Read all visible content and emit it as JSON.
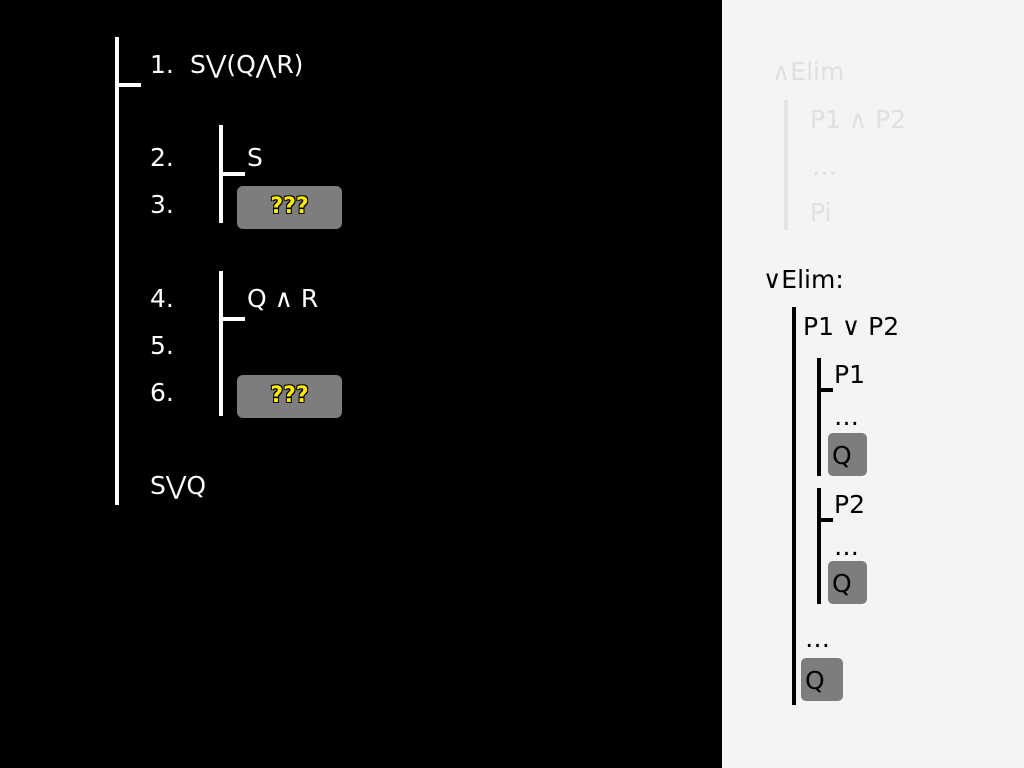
{
  "proof": {
    "line1": {
      "num": "1.",
      "formula": "S⋁(Q⋀R)"
    },
    "line2": {
      "num": "2.",
      "formula": "S"
    },
    "line3": {
      "num": "3.",
      "placeholder": "???"
    },
    "line4": {
      "num": "4.",
      "formula": "Q ∧ R"
    },
    "line5": {
      "num": "5."
    },
    "line6": {
      "num": "6.",
      "placeholder": "???"
    },
    "conclusion": "S⋁Q"
  },
  "rules": {
    "and_elim": {
      "title": "∧Elim",
      "premise": "P1 ∧ P2",
      "dots": "…",
      "result": "Pi"
    },
    "or_elim": {
      "title": "∨Elim:",
      "premise": "P1 ∨ P2",
      "case1": {
        "assume": "P1",
        "dots": "…",
        "result": "Q"
      },
      "case2": {
        "assume": "P2",
        "dots": "…",
        "result": "Q"
      },
      "dots": "…",
      "result": "Q"
    }
  }
}
